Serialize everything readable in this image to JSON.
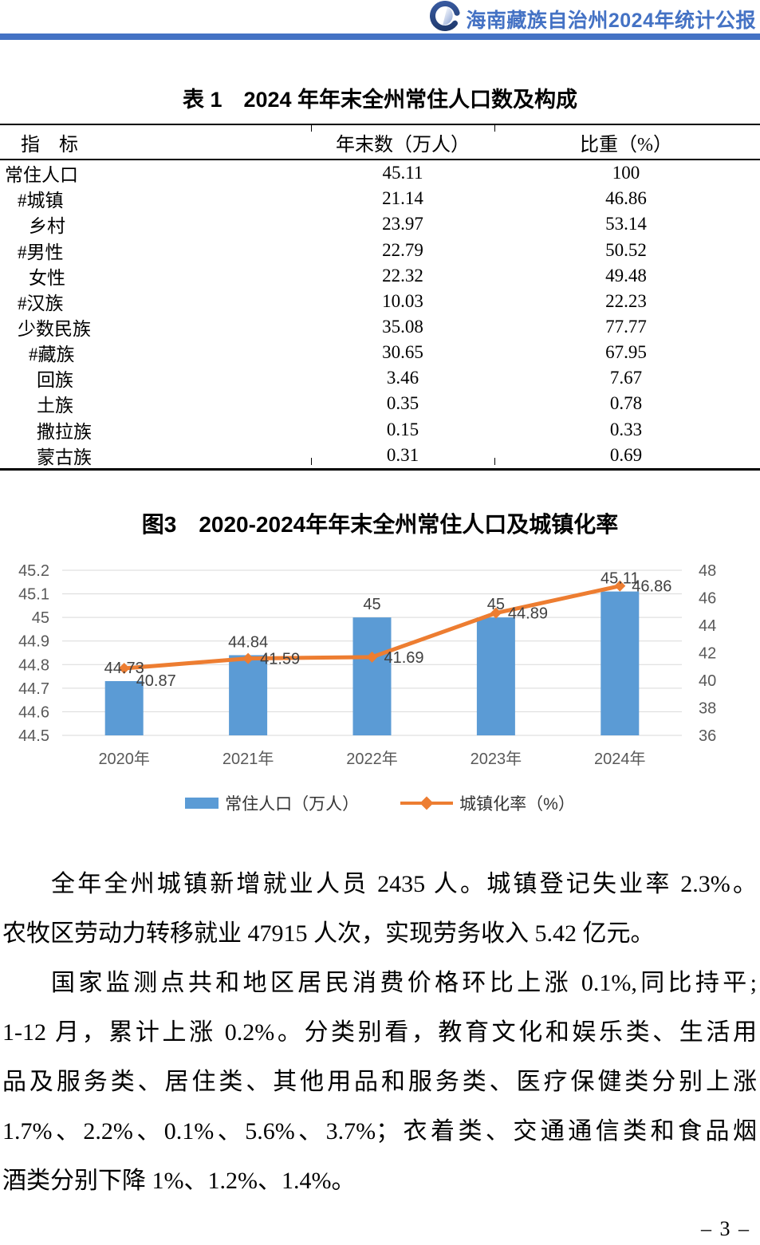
{
  "header": {
    "title": "海南藏族自治州2024年统计公报"
  },
  "table": {
    "title": "表 1　2024 年年末全州常住人口数及构成",
    "columns": {
      "indicator": "指　标",
      "value": "年末数（万人）",
      "share": "比重（%）"
    },
    "rows": [
      {
        "indent": 0,
        "label": "常住人口",
        "value": "45.11",
        "share": "100"
      },
      {
        "indent": 1,
        "label": "#城镇",
        "value": "21.14",
        "share": "46.86"
      },
      {
        "indent": 2,
        "label": "乡村",
        "value": "23.97",
        "share": "53.14"
      },
      {
        "indent": 1,
        "label": "#男性",
        "value": "22.79",
        "share": "50.52"
      },
      {
        "indent": 2,
        "label": "女性",
        "value": "22.32",
        "share": "49.48"
      },
      {
        "indent": 1,
        "label": "#汉族",
        "value": "10.03",
        "share": "22.23"
      },
      {
        "indent": 1,
        "label": "少数民族",
        "value": "35.08",
        "share": "77.77"
      },
      {
        "indent": 2,
        "label": "#藏族",
        "value": "30.65",
        "share": "67.95"
      },
      {
        "indent": 3,
        "label": "回族",
        "value": "3.46",
        "share": "7.67"
      },
      {
        "indent": 3,
        "label": "土族",
        "value": "0.35",
        "share": "0.78"
      },
      {
        "indent": 3,
        "label": "撒拉族",
        "value": "0.15",
        "share": "0.33"
      },
      {
        "indent": 3,
        "label": "蒙古族",
        "value": "0.31",
        "share": "0.69"
      }
    ]
  },
  "chart_data": {
    "type": "bar",
    "title": "图3　2020-2024年年末全州常住人口及城镇化率",
    "categories": [
      "2020年",
      "2021年",
      "2022年",
      "2023年",
      "2024年"
    ],
    "series": [
      {
        "name": "常住人口（万人）",
        "kind": "bar",
        "axis": "left",
        "values": [
          44.73,
          44.84,
          45,
          45,
          45.11
        ],
        "labels": [
          "44.73",
          "44.84",
          "45",
          "45",
          "45.11"
        ]
      },
      {
        "name": "城镇化率（%）",
        "kind": "line",
        "axis": "right",
        "values": [
          40.87,
          41.59,
          41.69,
          44.89,
          46.86
        ],
        "labels": [
          "40.87",
          "41.59",
          "41.69",
          "44.89",
          "46.86"
        ]
      }
    ],
    "left_axis": {
      "min": 44.5,
      "max": 45.2,
      "step": 0.1,
      "ticks": [
        "45.2",
        "45.1",
        "45",
        "44.9",
        "44.8",
        "44.7",
        "44.6",
        "44.5"
      ]
    },
    "right_axis": {
      "min": 36,
      "max": 48,
      "step": 2,
      "ticks": [
        "48",
        "46",
        "44",
        "42",
        "40",
        "38",
        "36"
      ]
    },
    "grid": true,
    "legend_position": "bottom"
  },
  "paragraphs": [
    {
      "lines": [
        "全年全州城镇新增就业人员 2435 人。城镇登记失业率 2.3%。",
        "农牧区劳动力转移就业 47915 人次，实现劳务收入 5.42 亿元。"
      ]
    },
    {
      "lines": [
        "国家监测点共和地区居民消费价格环比上涨 0.1%,同比持平;",
        "1-12 月，累计上涨 0.2%。分类别看，教育文化和娱乐类、生活用",
        "品及服务类、居住类、其他用品和服务类、医疗保健类分别上涨",
        "1.7%、2.2%、0.1%、5.6%、3.7%；衣着类、交通通信类和食品烟",
        "酒类分别下降 1%、1.2%、1.4%。"
      ]
    }
  ],
  "footer": {
    "page_number": "– 3 –"
  },
  "colors": {
    "accent_blue": "#4472C4",
    "logo_navy": "#24427F",
    "bar": "#5B9BD5",
    "line": "#ED7D31",
    "grid": "#D9D9D9",
    "axis_text": "#595959",
    "data_label": "#404040"
  }
}
